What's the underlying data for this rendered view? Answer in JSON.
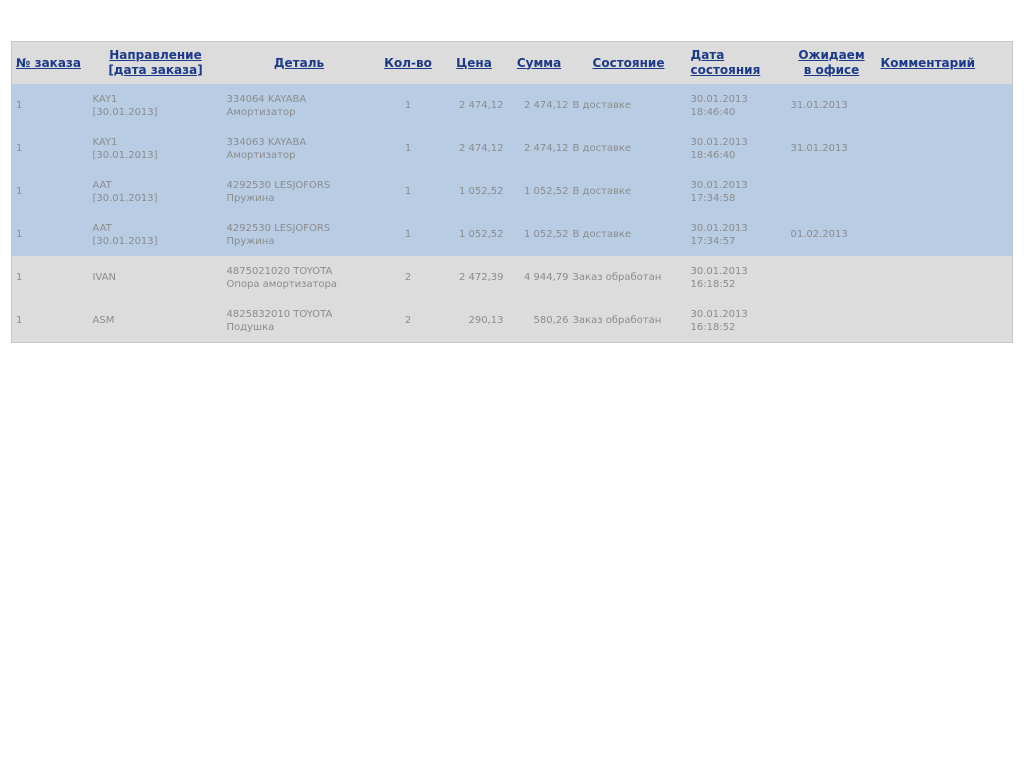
{
  "headers": [
    {
      "line1": "№ заказа",
      "line2": ""
    },
    {
      "line1": "Направление",
      "line2": "[дата заказа]"
    },
    {
      "line1": "Деталь",
      "line2": ""
    },
    {
      "line1": "Кол-во",
      "line2": ""
    },
    {
      "line1": "Цена",
      "line2": ""
    },
    {
      "line1": "Сумма",
      "line2": ""
    },
    {
      "line1": "Состояние",
      "line2": ""
    },
    {
      "line1": "Дата",
      "line2": "состояния"
    },
    {
      "line1": "Ожидаем",
      "line2": "в офисе"
    },
    {
      "line1": "Комментарий",
      "line2": ""
    }
  ],
  "colors": {
    "row_in_delivery": "#b8cce4",
    "row_processed": "#dcdcdc",
    "header_bg": "#dcdcdc",
    "link": "#1c3a8a"
  },
  "rows": [
    {
      "order": "1",
      "direction": "KAY1",
      "order_date": "[30.01.2013]",
      "part_no": "334064 KAYABA",
      "part_name": "Амортизатор",
      "qty": "1",
      "price": "2 474,12",
      "sum": "2 474,12",
      "status": "В доставке",
      "status_date": "30.01.2013",
      "status_time": "18:46:40",
      "expected": "31.01.2013",
      "comment": ""
    },
    {
      "order": "1",
      "direction": "KAY1",
      "order_date": "[30.01.2013]",
      "part_no": "334063 KAYABA",
      "part_name": "Амортизатор",
      "qty": "1",
      "price": "2 474,12",
      "sum": "2 474,12",
      "status": "В доставке",
      "status_date": "30.01.2013",
      "status_time": "18:46:40",
      "expected": "31.01.2013",
      "comment": ""
    },
    {
      "order": "1",
      "direction": "AAT",
      "order_date": "[30.01.2013]",
      "part_no": "4292530 LESJOFORS",
      "part_name": "Пружина",
      "qty": "1",
      "price": "1 052,52",
      "sum": "1 052,52",
      "status": "В доставке",
      "status_date": "30.01.2013",
      "status_time": "17:34:58",
      "expected": "",
      "comment": ""
    },
    {
      "order": "1",
      "direction": "AAT",
      "order_date": "[30.01.2013]",
      "part_no": "4292530 LESJOFORS",
      "part_name": "Пружина",
      "qty": "1",
      "price": "1 052,52",
      "sum": "1 052,52",
      "status": "В доставке",
      "status_date": "30.01.2013",
      "status_time": "17:34:57",
      "expected": "01.02.2013",
      "comment": ""
    },
    {
      "order": "1",
      "direction": "IVAN",
      "order_date": "",
      "part_no": "4875021020 TOYOTA",
      "part_name": "Опора амортизатора",
      "qty": "2",
      "price": "2 472,39",
      "sum": "4 944,79",
      "status": "Заказ обработан",
      "status_date": "30.01.2013",
      "status_time": "16:18:52",
      "expected": "",
      "comment": ""
    },
    {
      "order": "1",
      "direction": "ASM",
      "order_date": "",
      "part_no": "4825832010 TOYOTA",
      "part_name": "Подушка",
      "qty": "2",
      "price": "290,13",
      "sum": "580,26",
      "status": "Заказ обработан",
      "status_date": "30.01.2013",
      "status_time": "16:18:52",
      "expected": "",
      "comment": ""
    }
  ]
}
